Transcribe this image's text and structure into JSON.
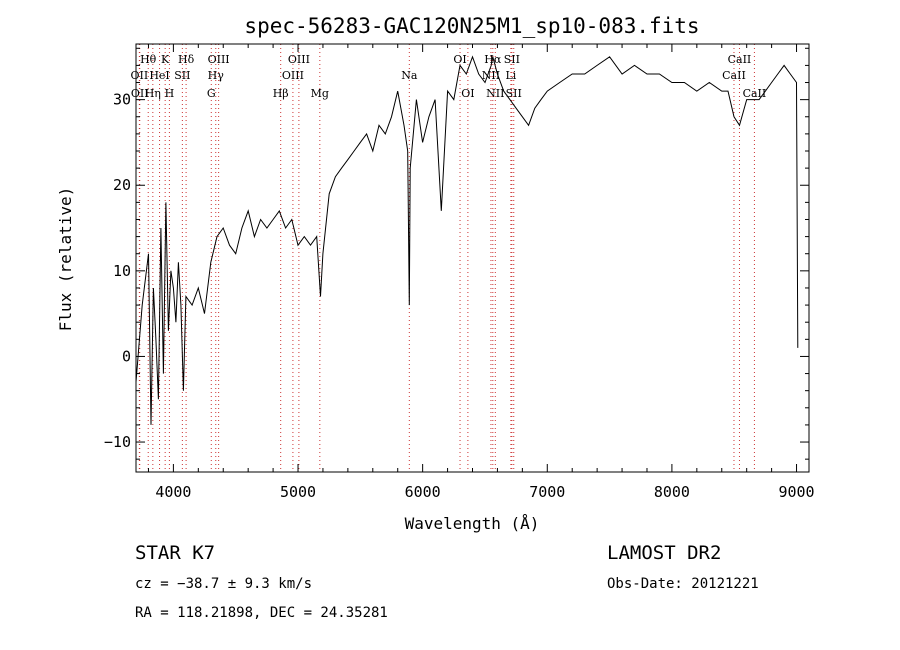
{
  "chart_data": {
    "type": "line",
    "title": "spec-56283-GAC120N25M1_sp10-083.fits",
    "xlabel": "Wavelength (Å)",
    "ylabel": "Flux (relative)",
    "xlim": [
      3700,
      9100
    ],
    "ylim": [
      -13.5,
      36.5
    ],
    "x_ticks": [
      4000,
      5000,
      6000,
      7000,
      8000,
      9000
    ],
    "y_ticks": [
      -10,
      0,
      10,
      20,
      30
    ],
    "grid": false,
    "series": [
      {
        "x": [
          3700,
          3750,
          3800,
          3820,
          3840,
          3860,
          3880,
          3900,
          3920,
          3940,
          3960,
          3980,
          4000,
          4020,
          4040,
          4060,
          4080,
          4100,
          4150,
          4200,
          4250,
          4300,
          4350,
          4400,
          4450,
          4500,
          4550,
          4600,
          4650,
          4700,
          4750,
          4800,
          4850,
          4900,
          4950,
          5000,
          5050,
          5100,
          5150,
          5180,
          5200,
          5250,
          5300,
          5350,
          5400,
          5450,
          5500,
          5550,
          5600,
          5650,
          5700,
          5750,
          5800,
          5850,
          5880,
          5893,
          5900,
          5950,
          6000,
          6050,
          6100,
          6150,
          6200,
          6250,
          6300,
          6350,
          6400,
          6450,
          6500,
          6550,
          6563,
          6600,
          6650,
          6700,
          6750,
          6800,
          6850,
          6900,
          6950,
          7000,
          7100,
          7200,
          7300,
          7400,
          7500,
          7600,
          7700,
          7800,
          7900,
          8000,
          8100,
          8200,
          8300,
          8400,
          8450,
          8498,
          8542,
          8600,
          8662,
          8700,
          8750,
          8800,
          8850,
          8900,
          8950,
          9000,
          9010
        ],
        "y": [
          -3,
          6,
          12,
          -8,
          8,
          2,
          -5,
          15,
          -2,
          18,
          3,
          10,
          8,
          4,
          11,
          6,
          -4,
          7,
          6,
          8,
          5,
          11,
          14,
          15,
          13,
          12,
          15,
          17,
          14,
          16,
          15,
          16,
          17,
          15,
          16,
          13,
          14,
          13,
          14,
          7,
          12,
          19,
          21,
          22,
          23,
          24,
          25,
          26,
          24,
          27,
          26,
          28,
          31,
          27,
          24,
          6,
          22,
          30,
          25,
          28,
          30,
          17,
          31,
          30,
          34,
          33,
          35,
          33,
          32,
          34,
          35,
          33,
          31,
          30,
          29,
          28,
          27,
          29,
          30,
          31,
          32,
          33,
          33,
          34,
          35,
          33,
          34,
          33,
          33,
          32,
          32,
          31,
          32,
          31,
          31,
          28,
          27,
          30,
          30,
          30,
          31,
          32,
          33,
          34,
          33,
          32,
          1
        ]
      }
    ],
    "line_labels": [
      {
        "label": "OII",
        "wave": 3727,
        "row": 2
      },
      {
        "label": "OII",
        "wave": 3730,
        "row": 3
      },
      {
        "label": "Hθ",
        "wave": 3798,
        "row": 1
      },
      {
        "label": "Hη",
        "wave": 3835,
        "row": 3
      },
      {
        "label": "K",
        "wave": 3934,
        "row": 1
      },
      {
        "label": "H",
        "wave": 3968,
        "row": 3
      },
      {
        "label": "HeI",
        "wave": 3889,
        "row": 2
      },
      {
        "label": "SII",
        "wave": 4072,
        "row": 2
      },
      {
        "label": "Hδ",
        "wave": 4102,
        "row": 1
      },
      {
        "label": "OIII",
        "wave": 4363,
        "row": 1
      },
      {
        "label": "Hγ",
        "wave": 4340,
        "row": 2
      },
      {
        "label": "G",
        "wave": 4304,
        "row": 3
      },
      {
        "label": "Hβ",
        "wave": 4861,
        "row": 3
      },
      {
        "label": "OIII",
        "wave": 4959,
        "row": 2
      },
      {
        "label": "OIII",
        "wave": 5007,
        "row": 1
      },
      {
        "label": "Mg",
        "wave": 5175,
        "row": 3
      },
      {
        "label": "Na",
        "wave": 5893,
        "row": 2
      },
      {
        "label": "OI",
        "wave": 6300,
        "row": 1
      },
      {
        "label": "OI",
        "wave": 6363,
        "row": 3
      },
      {
        "label": "NII",
        "wave": 6548,
        "row": 2
      },
      {
        "label": "Hα",
        "wave": 6563,
        "row": 1
      },
      {
        "label": "NII",
        "wave": 6583,
        "row": 3
      },
      {
        "label": "Li",
        "wave": 6708,
        "row": 2
      },
      {
        "label": "SII",
        "wave": 6716,
        "row": 1
      },
      {
        "label": "SII",
        "wave": 6731,
        "row": 3
      },
      {
        "label": "CaII",
        "wave": 8498,
        "row": 2
      },
      {
        "label": "CaII",
        "wave": 8542,
        "row": 1
      },
      {
        "label": "CaII",
        "wave": 8662,
        "row": 3
      }
    ]
  },
  "info": {
    "class": "STAR    K7",
    "cz": "cz = −38.7 ± 9.3 km/s",
    "radec": "RA = 118.21898, DEC =  24.35281",
    "survey": "LAMOST DR2",
    "obsdate": "Obs-Date: 20121221"
  },
  "colors": {
    "axis": "#000000",
    "line": "#000000",
    "marker": "#cc3333"
  }
}
